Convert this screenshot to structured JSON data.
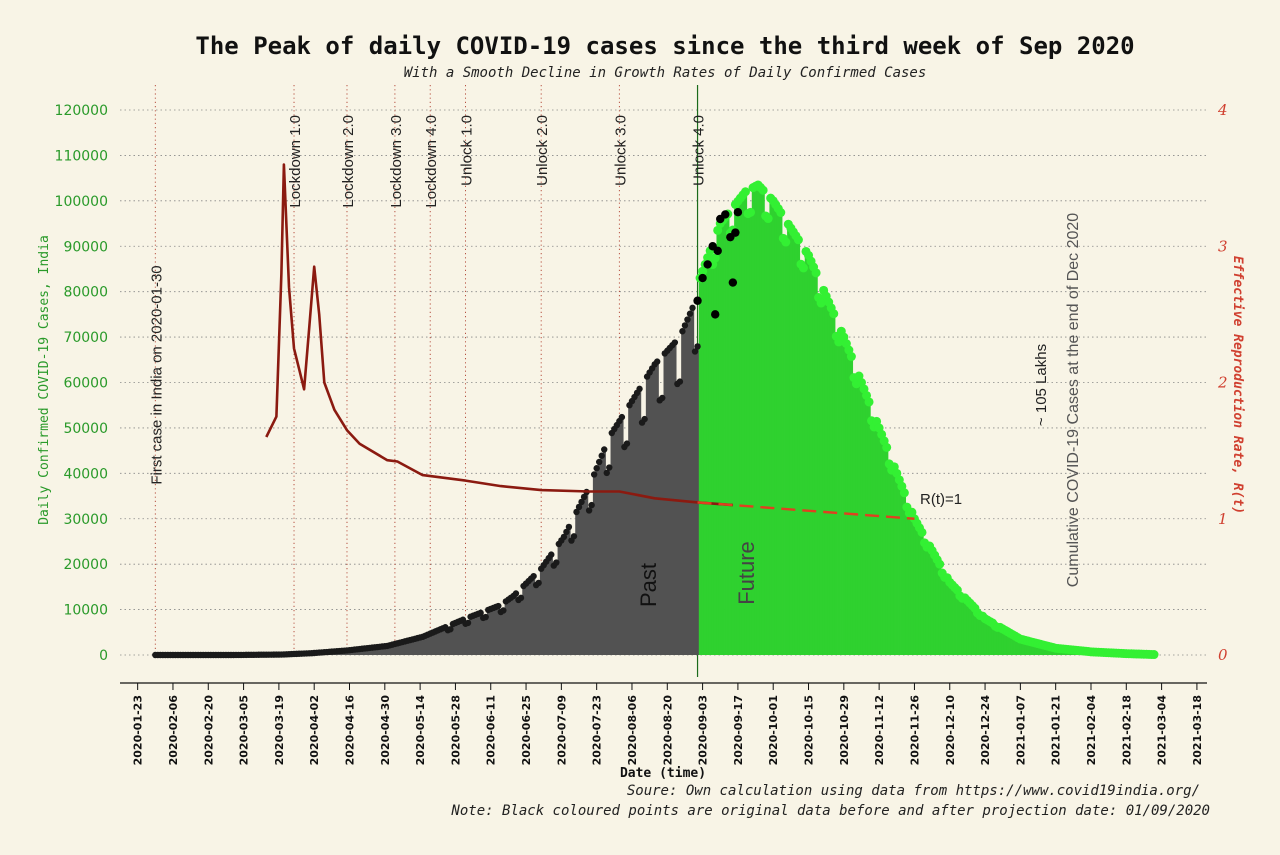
{
  "chart_data": {
    "type": "bar",
    "title": "The Peak of daily COVID-19 cases since the third week of Sep 2020",
    "subtitle": "With a Smooth Decline in Growth Rates of Daily Confirmed Cases",
    "xlabel": "Date (time)",
    "ylabel_left": "Daily Confirmed COVID-19 Cases, India",
    "ylabel_right": "Effective Reproduction Rate, R(t)",
    "ylim_left": [
      0,
      120000
    ],
    "ylim_right": [
      0,
      4
    ],
    "y_ticks_left": [
      "0",
      "10000",
      "20000",
      "30000",
      "40000",
      "50000",
      "60000",
      "70000",
      "80000",
      "90000",
      "100000",
      "110000",
      "120000"
    ],
    "y_ticks_right": [
      "0",
      "1",
      "2",
      "3",
      "4"
    ],
    "x_ticks": [
      "2020-01-23",
      "2020-02-06",
      "2020-02-20",
      "2020-03-05",
      "2020-03-19",
      "2020-04-02",
      "2020-04-16",
      "2020-04-30",
      "2020-05-14",
      "2020-05-28",
      "2020-06-11",
      "2020-06-25",
      "2020-07-09",
      "2020-07-23",
      "2020-08-06",
      "2020-08-20",
      "2020-09-03",
      "2020-09-17",
      "2020-10-01",
      "2020-10-15",
      "2020-10-29",
      "2020-11-12",
      "2020-11-26",
      "2020-12-10",
      "2020-12-24",
      "2021-01-07",
      "2021-01-21",
      "2021-02-04",
      "2021-02-18",
      "2021-03-04",
      "2021-03-18"
    ],
    "grid": true,
    "events": [
      {
        "date": "2020-01-30",
        "label": "First case in India on 2020-01-30"
      },
      {
        "date": "2020-03-25",
        "label": "Lockdown 1.0"
      },
      {
        "date": "2020-04-15",
        "label": "Lockdown 2.0"
      },
      {
        "date": "2020-05-04",
        "label": "Lockdown 3.0"
      },
      {
        "date": "2020-05-18",
        "label": "Lockdown 4.0"
      },
      {
        "date": "2020-06-01",
        "label": "Unlock 1.0"
      },
      {
        "date": "2020-07-01",
        "label": "Unlock 2.0"
      },
      {
        "date": "2020-08-01",
        "label": "Unlock 3.0"
      },
      {
        "date": "2020-09-01",
        "label": "Unlock 4.0"
      }
    ],
    "projection_date": "2020-09-01",
    "past_label": "Past",
    "future_label": "Future",
    "rt_label": "R(t)=1",
    "cumulative_label_line1": "~ 105 Lakhs",
    "cumulative_label_line2": "Cumulative COVID-19 Cases at the end of Dec 2020",
    "series": [
      {
        "name": "Daily Confirmed Cases (past)",
        "color": "#4a4a4a",
        "points": [
          [
            "2020-01-30",
            0
          ],
          [
            "2020-03-01",
            0
          ],
          [
            "2020-03-20",
            100
          ],
          [
            "2020-04-01",
            400
          ],
          [
            "2020-04-15",
            1000
          ],
          [
            "2020-05-01",
            2000
          ],
          [
            "2020-05-15",
            4000
          ],
          [
            "2020-06-01",
            8000
          ],
          [
            "2020-06-15",
            11000
          ],
          [
            "2020-06-20",
            13000
          ],
          [
            "2020-07-01",
            19000
          ],
          [
            "2020-07-10",
            26000
          ],
          [
            "2020-07-20",
            37000
          ],
          [
            "2020-07-28",
            48000
          ],
          [
            "2020-08-05",
            55000
          ],
          [
            "2020-08-15",
            64000
          ],
          [
            "2020-08-25",
            70000
          ],
          [
            "2020-09-01",
            79000
          ]
        ]
      },
      {
        "name": "Daily Confirmed Cases (projection)",
        "color": "#2fd12f",
        "points": [
          [
            "2020-09-02",
            83000
          ],
          [
            "2020-09-10",
            95000
          ],
          [
            "2020-09-20",
            102000
          ],
          [
            "2020-09-25",
            103500
          ],
          [
            "2020-10-01",
            100000
          ],
          [
            "2020-10-15",
            88000
          ],
          [
            "2020-10-29",
            70000
          ],
          [
            "2020-11-12",
            50000
          ],
          [
            "2020-11-26",
            30000
          ],
          [
            "2020-12-10",
            16000
          ],
          [
            "2020-12-24",
            8000
          ],
          [
            "2021-01-07",
            3500
          ],
          [
            "2021-01-21",
            1500
          ],
          [
            "2021-02-04",
            700
          ],
          [
            "2021-02-18",
            300
          ],
          [
            "2021-03-01",
            100
          ]
        ]
      },
      {
        "name": "Original data (black points)",
        "color": "#000000",
        "points": [
          [
            "2020-09-01",
            78000
          ],
          [
            "2020-09-03",
            83000
          ],
          [
            "2020-09-05",
            86000
          ],
          [
            "2020-09-07",
            90000
          ],
          [
            "2020-09-09",
            89000
          ],
          [
            "2020-09-10",
            96000
          ],
          [
            "2020-09-12",
            97000
          ],
          [
            "2020-09-14",
            92000
          ],
          [
            "2020-09-15",
            82000
          ],
          [
            "2020-09-16",
            93000
          ],
          [
            "2020-09-17",
            97500
          ],
          [
            "2020-09-08",
            75000
          ]
        ]
      },
      {
        "name": "R(t)",
        "color": "#8b1a10",
        "axis": "right",
        "points": [
          [
            "2020-03-14",
            1.6
          ],
          [
            "2020-03-18",
            1.75
          ],
          [
            "2020-03-20",
            2.8
          ],
          [
            "2020-03-21",
            3.6
          ],
          [
            "2020-03-23",
            2.7
          ],
          [
            "2020-03-25",
            2.25
          ],
          [
            "2020-03-27",
            2.1
          ],
          [
            "2020-03-29",
            1.95
          ],
          [
            "2020-03-31",
            2.4
          ],
          [
            "2020-04-02",
            2.85
          ],
          [
            "2020-04-04",
            2.5
          ],
          [
            "2020-04-06",
            2.0
          ],
          [
            "2020-04-10",
            1.8
          ],
          [
            "2020-04-15",
            1.65
          ],
          [
            "2020-04-20",
            1.55
          ],
          [
            "2020-05-01",
            1.43
          ],
          [
            "2020-05-05",
            1.42
          ],
          [
            "2020-05-15",
            1.32
          ],
          [
            "2020-06-01",
            1.28
          ],
          [
            "2020-06-15",
            1.24
          ],
          [
            "2020-07-01",
            1.21
          ],
          [
            "2020-07-20",
            1.2
          ],
          [
            "2020-08-01",
            1.2
          ],
          [
            "2020-08-15",
            1.15
          ],
          [
            "2020-09-01",
            1.12
          ],
          [
            "2020-09-15",
            1.1
          ]
        ]
      },
      {
        "name": "R(t) projection",
        "color": "#e04020",
        "axis": "right",
        "dashed": true,
        "points": [
          [
            "2020-09-01",
            1.12
          ],
          [
            "2020-11-26",
            1.0
          ]
        ]
      }
    ]
  },
  "footer": {
    "source": "Soure: Own calculation using data from https://www.covid19india.org/",
    "note": "Note: Black coloured points are original data before and after projection date: 01/09/2020"
  }
}
